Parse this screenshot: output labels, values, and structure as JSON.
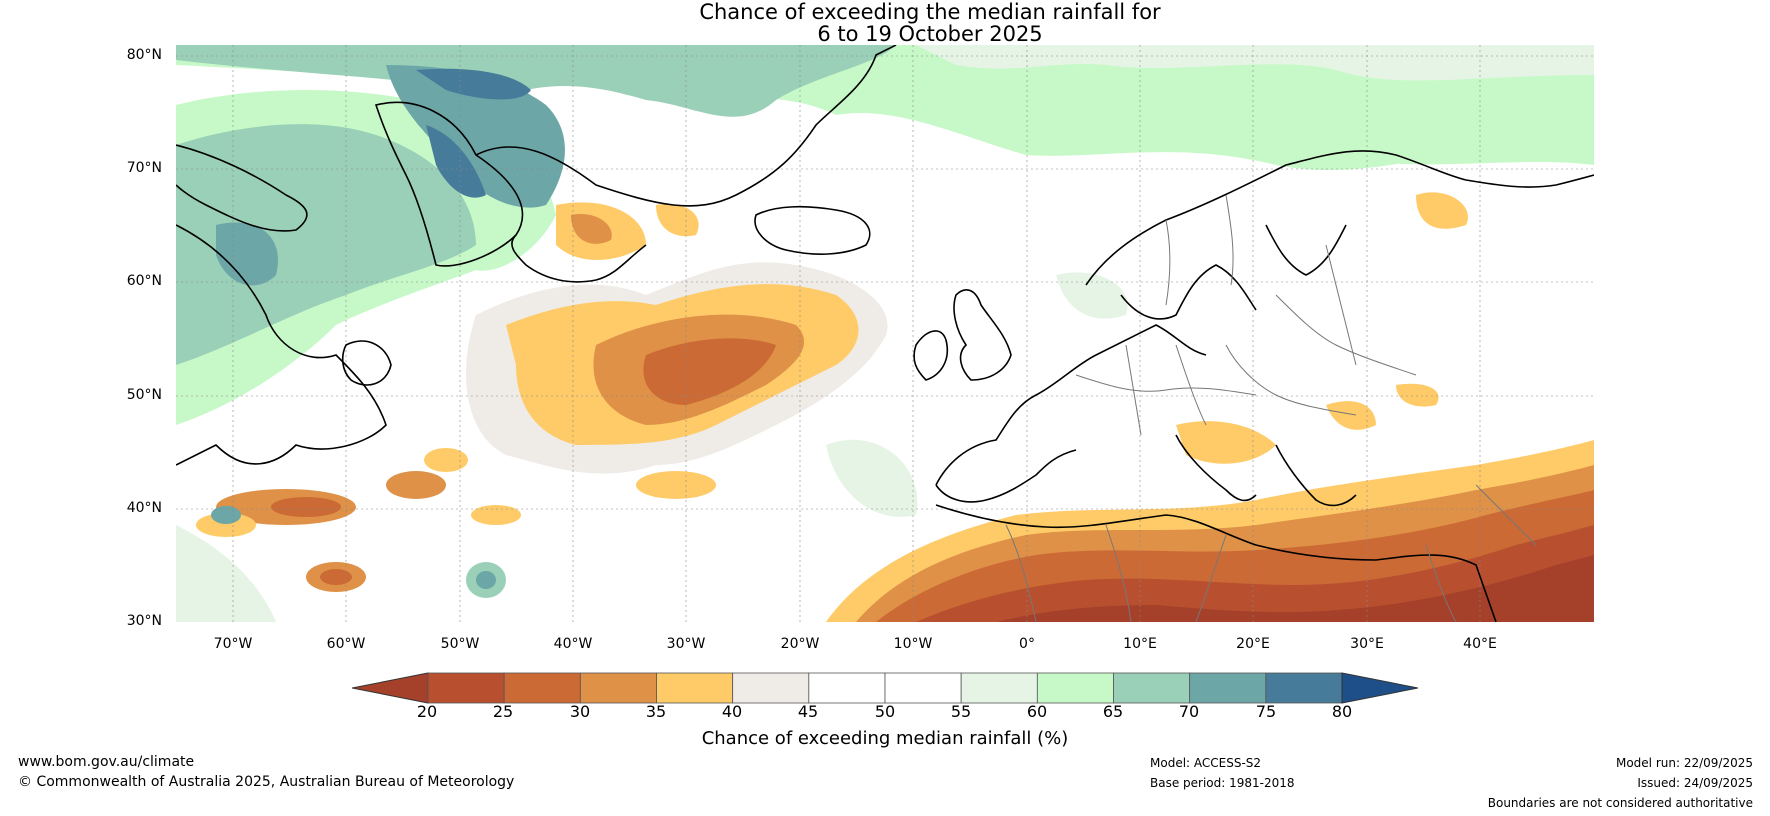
{
  "title": {
    "line1": "Chance of exceeding the median rainfall for",
    "line2": "6 to 19 October 2025"
  },
  "map": {
    "lat_labels": [
      "80°N",
      "70°N",
      "60°N",
      "50°N",
      "40°N",
      "30°N"
    ],
    "lon_labels": [
      "70°W",
      "60°W",
      "50°W",
      "40°W",
      "30°W",
      "20°W",
      "10°W",
      "0°",
      "10°E",
      "20°E",
      "30°E",
      "40°E"
    ],
    "extent": {
      "lon_min": -75,
      "lon_max": 50,
      "lat_min": 30,
      "lat_max": 81
    }
  },
  "colorbar": {
    "ticks": [
      "20",
      "25",
      "30",
      "35",
      "40",
      "45",
      "50",
      "55",
      "60",
      "65",
      "70",
      "75",
      "80"
    ],
    "colors": [
      "#a5412a",
      "#b85030",
      "#cc6a35",
      "#df9147",
      "#fecb68",
      "#efebe7",
      "#ffffff",
      "#ffffff",
      "#e6f4e6",
      "#c7f9c8",
      "#9ad0b7",
      "#6ca6a7",
      "#467b9a",
      "#1f4f88"
    ],
    "label": "Chance of exceeding median rainfall (%)"
  },
  "footer": {
    "website": "www.bom.gov.au/climate",
    "copyright": "© Commonwealth of Australia 2025, Australian Bureau of Meteorology",
    "model": "Model: ACCESS-S2",
    "base_period": "Base period: 1981-2018",
    "model_run": "Model run: 22/09/2025",
    "issued": "Issued: 24/09/2025",
    "disclaimer": "Boundaries are not considered authoritative"
  }
}
